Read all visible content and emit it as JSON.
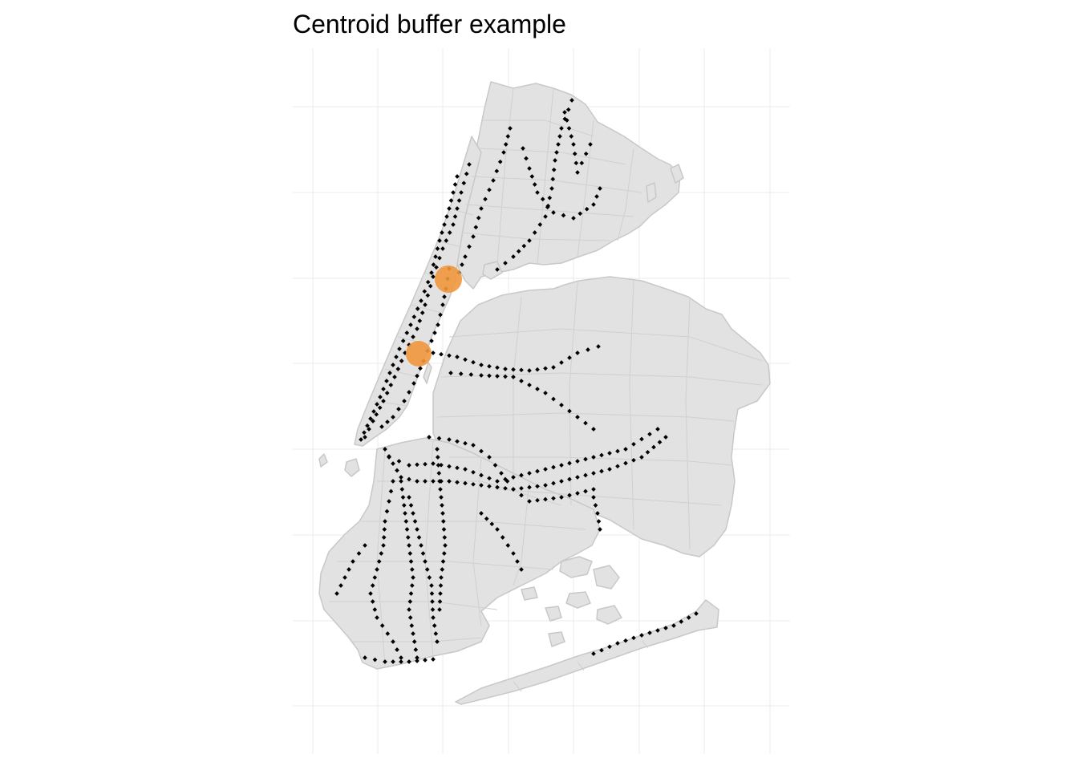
{
  "title": "Centroid buffer example",
  "colors": {
    "background": "#ffffff",
    "grid": "#ebebeb",
    "land_fill": "#e2e2e2",
    "boundary": "#c8c8c8",
    "station": "#000000",
    "buffer": "#f0973c"
  },
  "legend": "none",
  "grid": true,
  "layers": [
    "grid",
    "land",
    "tract-boundaries",
    "subway-stations",
    "centroid-buffers"
  ],
  "centroid_buffers": 2
}
